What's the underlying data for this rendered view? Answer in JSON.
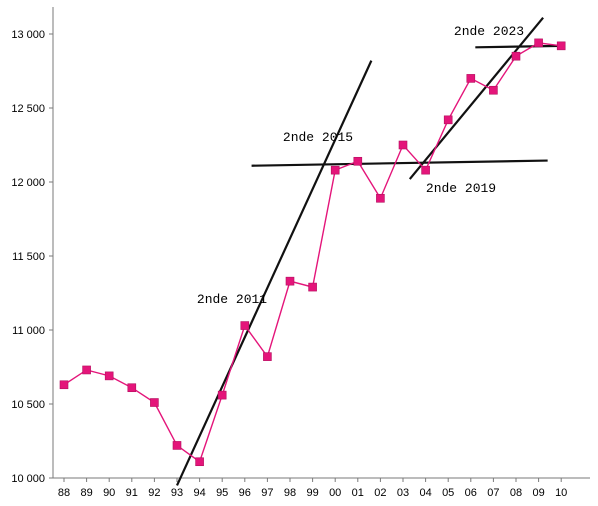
{
  "chart_data": {
    "type": "line",
    "title": "",
    "xlabel": "",
    "ylabel": "",
    "categories": [
      "88",
      "89",
      "90",
      "91",
      "92",
      "93",
      "94",
      "95",
      "96",
      "97",
      "98",
      "99",
      "00",
      "01",
      "02",
      "03",
      "04",
      "05",
      "06",
      "07",
      "08",
      "09",
      "10"
    ],
    "y_ticks": [
      "10 000",
      "10 500",
      "11 000",
      "11 500",
      "12 000",
      "12 500",
      "13 000"
    ],
    "ylim": [
      10000,
      13000
    ],
    "grid": false,
    "series": [
      {
        "color": "#e4157a",
        "values": [
          10630,
          10730,
          10690,
          10610,
          10510,
          10220,
          10110,
          10560,
          11030,
          10820,
          11330,
          11290,
          12080,
          12140,
          11890,
          12250,
          12080,
          12420,
          12700,
          12620,
          12850,
          12940,
          12920
        ]
      }
    ],
    "trend_lines": [
      {
        "label": "2nde 2011",
        "from": [
          "93",
          9950
        ],
        "to": [
          "01.6",
          12820
        ]
      },
      {
        "label": "2nde 2015",
        "from": [
          "96.3",
          12110
        ],
        "to": [
          "09.4",
          12145
        ]
      },
      {
        "label": "2nde 2019",
        "from": [
          "03.3",
          12020
        ],
        "to": [
          "09.2",
          13110
        ]
      },
      {
        "label": "2nde 2023",
        "from": [
          "06.2",
          12910
        ],
        "to": [
          "10",
          12920
        ]
      }
    ],
    "colors": {
      "trend": "#111111",
      "axis": "#7a7a7a",
      "marker": "#e4157a"
    }
  }
}
